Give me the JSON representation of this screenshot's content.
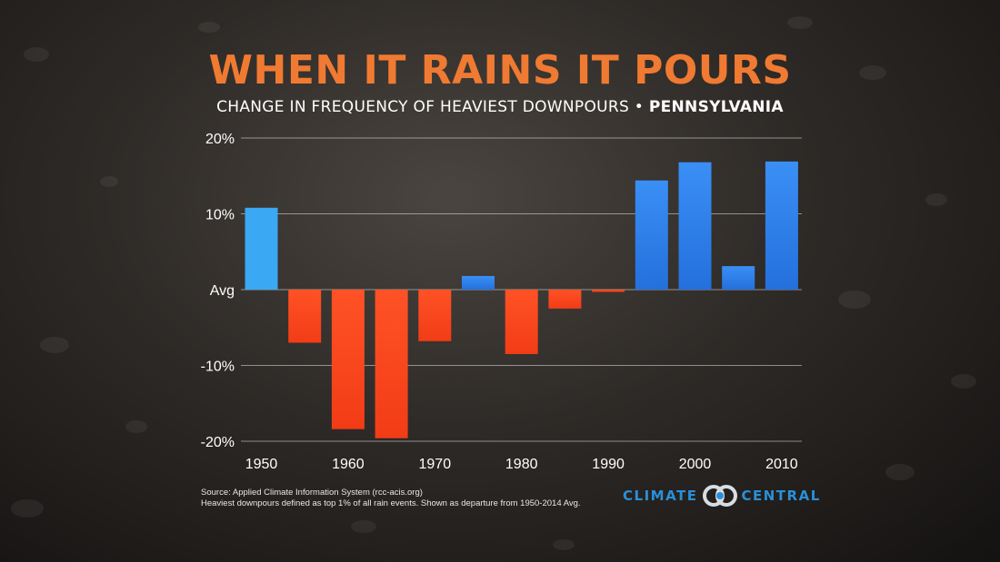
{
  "title": "WHEN IT RAINS IT POURS",
  "subtitle_main": "CHANGE IN FREQUENCY OF HEAVIEST DOWNPOURS • ",
  "subtitle_region": "PENNSYLVANIA",
  "footer": {
    "source": "Source: Applied Climate Information System (rcc-acis.org)",
    "definition": "Heaviest downpours defined as top 1% of all rain events. Shown as departure from 1950-2014 Avg."
  },
  "logo": {
    "left_word": "CLIMATE",
    "right_word": "CENTRAL",
    "icon": "climate-central-logo-icon"
  },
  "colors": {
    "title": "#f07a32",
    "positive": "#2f86f0",
    "negative": "#ff4a20",
    "first_bar": "#3aa8f2",
    "logo": "#2a8fd8"
  },
  "chart_data": {
    "type": "bar",
    "categories": [
      "1950",
      "1955",
      "1960",
      "1965",
      "1970",
      "1975",
      "1980",
      "1985",
      "1990",
      "1995",
      "2000",
      "2005",
      "2010"
    ],
    "values": [
      10.8,
      -7.0,
      -18.4,
      -19.6,
      -6.8,
      1.8,
      -8.5,
      -2.5,
      -0.3,
      14.4,
      16.8,
      3.1,
      16.9
    ],
    "unit": "%",
    "ylim": [
      -20,
      20
    ],
    "yticks": [
      {
        "value": 20,
        "label": "20%"
      },
      {
        "value": 10,
        "label": "10%"
      },
      {
        "value": 0,
        "label": "Avg"
      },
      {
        "value": -10,
        "label": "-10%"
      },
      {
        "value": -20,
        "label": "-20%"
      }
    ],
    "xtick_labels": [
      "1950",
      "1960",
      "1970",
      "1980",
      "1990",
      "2000",
      "2010"
    ],
    "grid": true,
    "legend": false
  }
}
